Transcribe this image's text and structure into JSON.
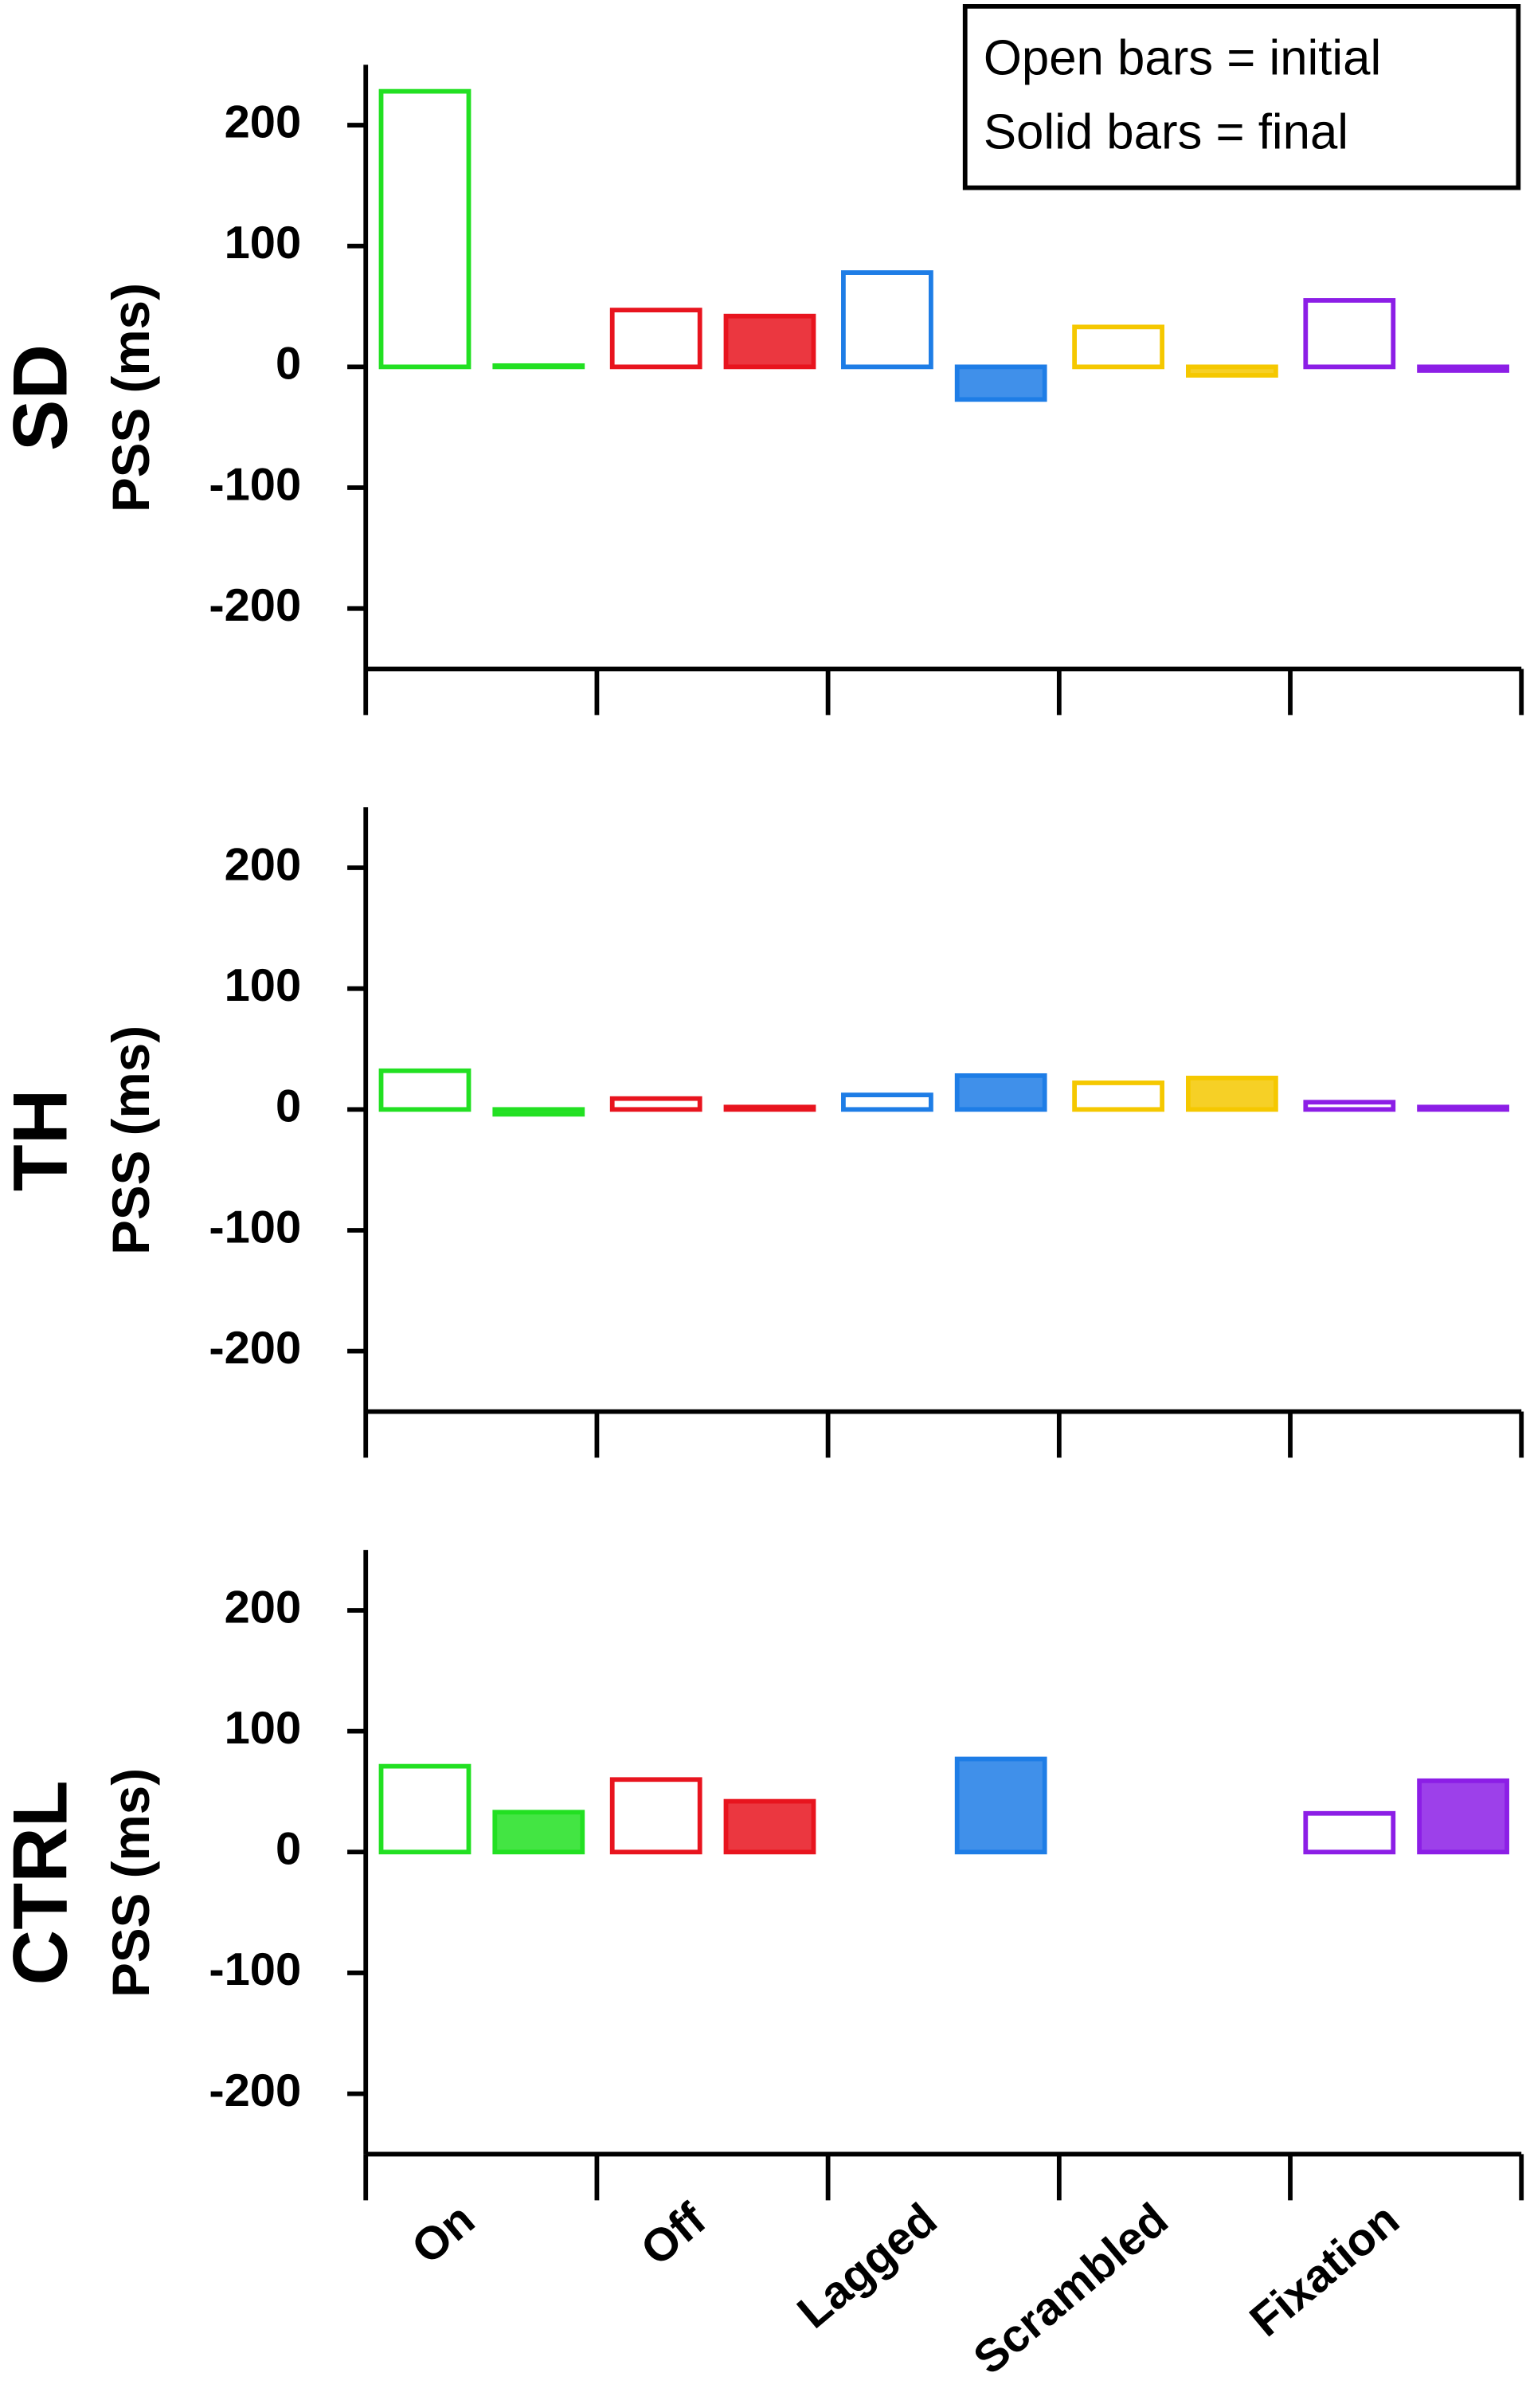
{
  "chart_data": [
    {
      "type": "bar",
      "panel_label": "SD",
      "ylabel": "PSS (ms)",
      "legend": [
        "Open bars = initial",
        "Solid bars = final"
      ],
      "categories": [
        null,
        null,
        null,
        null,
        null
      ],
      "colors": [
        "#22e022",
        "#e8141e",
        "#1e7de6",
        "#f5c800",
        "#8c1ee6"
      ],
      "series": [
        {
          "style": "open",
          "values": [
            228,
            47,
            78,
            33,
            55
          ]
        },
        {
          "style": "solid",
          "values": [
            1,
            42,
            -27,
            -7,
            -3
          ]
        }
      ],
      "ylim": [
        -250,
        250
      ],
      "yticks": [
        -200,
        -100,
        0,
        100,
        200
      ]
    },
    {
      "type": "bar",
      "panel_label": "TH",
      "ylabel": "PSS (ms)",
      "categories": [
        null,
        null,
        null,
        null,
        null
      ],
      "colors": [
        "#22e022",
        "#e8141e",
        "#1e7de6",
        "#f5c800",
        "#8c1ee6"
      ],
      "series": [
        {
          "style": "open",
          "values": [
            32,
            9,
            12,
            22,
            6
          ]
        },
        {
          "style": "solid",
          "values": [
            -4,
            2,
            28,
            26,
            2
          ]
        }
      ],
      "ylim": [
        -250,
        250
      ],
      "yticks": [
        -200,
        -100,
        0,
        100,
        200
      ]
    },
    {
      "type": "bar",
      "panel_label": "CTRL",
      "ylabel": "PSS (ms)",
      "categories": [
        "On",
        "Off",
        "Lagged",
        "Scrambled",
        "Fixation"
      ],
      "colors": [
        "#22e022",
        "#e8141e",
        "#1e7de6",
        "#f5c800",
        "#8c1ee6"
      ],
      "series": [
        {
          "style": "open",
          "values": [
            71,
            60,
            null,
            null,
            32
          ]
        },
        {
          "style": "solid",
          "values": [
            33,
            42,
            77,
            null,
            59
          ]
        }
      ],
      "ylim": [
        -250,
        250
      ],
      "yticks": [
        -200,
        -100,
        0,
        100,
        200
      ]
    }
  ]
}
